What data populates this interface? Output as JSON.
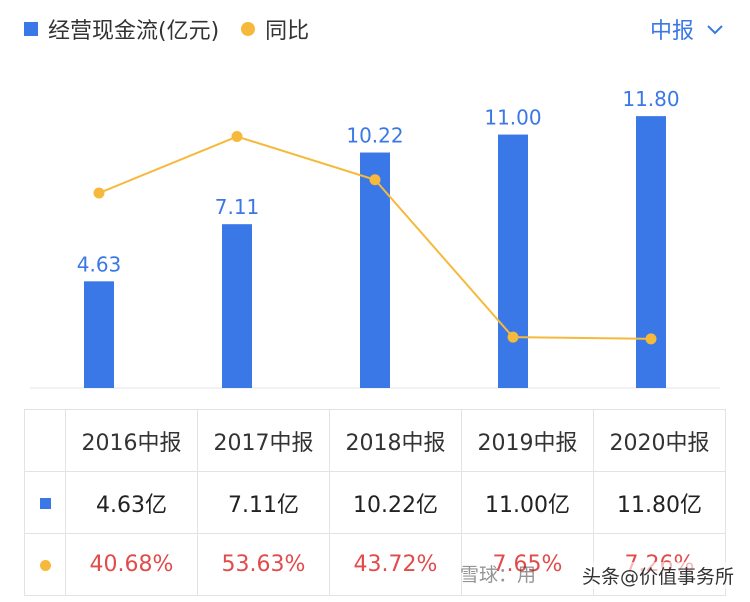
{
  "legend": {
    "bar_label": "经营现金流(亿元)",
    "line_label": "同比"
  },
  "period_selector": {
    "label": "中报"
  },
  "chart_data": {
    "type": "bar+line",
    "categories": [
      "2016中报",
      "2017中报",
      "2018中报",
      "2019中报",
      "2020中报"
    ],
    "series": [
      {
        "name": "经营现金流(亿元)",
        "type": "bar",
        "color": "#3b78e7",
        "values": [
          4.63,
          7.11,
          10.22,
          11.0,
          11.8
        ],
        "labels": [
          "4.63",
          "7.11",
          "10.22",
          "11.00",
          "11.80"
        ]
      },
      {
        "name": "同比",
        "type": "line",
        "color": "#f6b93b",
        "values": [
          40.68,
          53.63,
          43.72,
          7.65,
          7.26
        ]
      }
    ],
    "title": "",
    "xlabel": "",
    "ylabel": "",
    "bar_ylim": [
      0,
      12.5
    ],
    "line_ylim": [
      -4,
      62
    ],
    "grid": false
  },
  "table": {
    "headers": [
      "2016中报",
      "2017中报",
      "2018中报",
      "2019中报",
      "2020中报"
    ],
    "values_row": [
      "4.63亿",
      "7.11亿",
      "10.22亿",
      "11.00亿",
      "11.80亿"
    ],
    "yoy_row": [
      "40.68%",
      "53.63%",
      "43.72%",
      "7.65%",
      "7.26%"
    ]
  },
  "watermark": {
    "left_text": "雪球：用",
    "right_text": "头条@价值事务所"
  }
}
